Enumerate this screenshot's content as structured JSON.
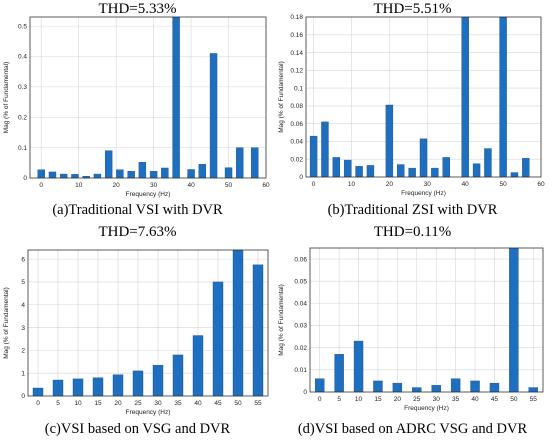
{
  "panels": [
    {
      "thd_label": "THD=5.33%",
      "caption": "(a)Traditional VSI with DVR",
      "chart_data": {
        "type": "bar",
        "x": [
          0,
          3,
          6,
          9,
          12,
          15,
          18,
          21,
          24,
          27,
          30,
          33,
          36,
          40,
          43,
          46,
          50,
          53,
          57
        ],
        "values": [
          0.027,
          0.02,
          0.013,
          0.012,
          0.006,
          0.013,
          0.09,
          0.027,
          0.022,
          0.052,
          0.022,
          0.033,
          0.53,
          0.028,
          0.045,
          0.41,
          0.034,
          0.1,
          0.1
        ],
        "xlim": [
          -3,
          60
        ],
        "ylim": [
          0,
          0.53
        ],
        "xticks": [
          0,
          10,
          20,
          30,
          40,
          50,
          60
        ],
        "yticks": [
          0,
          0.1,
          0.2,
          0.3,
          0.4,
          0.5
        ],
        "xtick_labels": [
          "0",
          "10",
          "20",
          "30",
          "40",
          "50",
          "60"
        ],
        "ytick_labels": [
          "0",
          "0.1",
          "0.2",
          "0.3",
          "0.4",
          "0.5"
        ],
        "xlabel": "Frequency (Hz)",
        "ylabel": "Mag (% of Fundamental)",
        "grid": true
      }
    },
    {
      "thd_label": "THD=5.51%",
      "caption": "(b)Traditional ZSI with DVR",
      "chart_data": {
        "type": "bar",
        "x": [
          0,
          3,
          6,
          9,
          12,
          15,
          20,
          23,
          26,
          29,
          32,
          35,
          40,
          43,
          46,
          50,
          53,
          56
        ],
        "values": [
          0.046,
          0.062,
          0.022,
          0.019,
          0.012,
          0.013,
          0.081,
          0.014,
          0.01,
          0.043,
          0.01,
          0.022,
          0.18,
          0.015,
          0.032,
          0.18,
          0.005,
          0.021
        ],
        "xlim": [
          -2,
          60
        ],
        "ylim": [
          0,
          0.18
        ],
        "xticks": [
          0,
          10,
          20,
          30,
          40,
          50,
          60
        ],
        "yticks": [
          0,
          0.02,
          0.04,
          0.06,
          0.08,
          0.1,
          0.12,
          0.14,
          0.16,
          0.18
        ],
        "xtick_labels": [
          "0",
          "10",
          "20",
          "30",
          "40",
          "50",
          "60"
        ],
        "ytick_labels": [
          "0",
          "0.02",
          "0.04",
          "0.06",
          "0.08",
          "0.1",
          "0.12",
          "0.14",
          "0.16",
          "0.18"
        ],
        "xlabel": "Frequency (Hz)",
        "ylabel": "Mag (% of Fundamental)",
        "grid": true
      }
    },
    {
      "thd_label": "THD=7.63%",
      "caption": "(c)VSI based on VSG and DVR",
      "chart_data": {
        "type": "bar",
        "x": [
          0,
          5,
          10,
          15,
          20,
          25,
          30,
          35,
          40,
          45,
          50,
          55
        ],
        "values": [
          0.35,
          0.7,
          0.75,
          0.8,
          0.93,
          1.1,
          1.35,
          1.8,
          2.65,
          5.0,
          6.4,
          5.75
        ],
        "xlim": [
          -2.5,
          57.5
        ],
        "ylim": [
          0,
          6.4
        ],
        "xticks": [
          0,
          5,
          10,
          15,
          20,
          25,
          30,
          35,
          40,
          45,
          50,
          55
        ],
        "yticks": [
          0,
          1,
          2,
          3,
          4,
          5,
          6
        ],
        "xtick_labels": [
          "0",
          "5",
          "10",
          "15",
          "20",
          "25",
          "30",
          "35",
          "40",
          "45",
          "50",
          "55"
        ],
        "ytick_labels": [
          "0",
          "1",
          "2",
          "3",
          "4",
          "5",
          "6"
        ],
        "xlabel": "Frequency (Hz)",
        "ylabel": "Mag (% of Fundamental)",
        "grid": true
      }
    },
    {
      "thd_label": "THD=0.11%",
      "caption": "(d)VSI based on ADRC VSG and DVR",
      "chart_data": {
        "type": "bar",
        "x": [
          0,
          5,
          10,
          15,
          20,
          25,
          30,
          35,
          40,
          45,
          50,
          55
        ],
        "values": [
          0.006,
          0.017,
          0.023,
          0.005,
          0.004,
          0.002,
          0.003,
          0.006,
          0.005,
          0.004,
          0.065,
          0.002
        ],
        "xlim": [
          -2.5,
          57.5
        ],
        "ylim": [
          0,
          0.065
        ],
        "xticks": [
          0,
          5,
          10,
          15,
          20,
          25,
          30,
          35,
          40,
          45,
          50,
          55
        ],
        "yticks": [
          0,
          0.01,
          0.02,
          0.03,
          0.04,
          0.05,
          0.06
        ],
        "xtick_labels": [
          "0",
          "5",
          "10",
          "15",
          "20",
          "25",
          "30",
          "35",
          "40",
          "45",
          "50",
          "55"
        ],
        "ytick_labels": [
          "0",
          "0.01",
          "0.02",
          "0.03",
          "0.04",
          "0.05",
          "0.06"
        ],
        "xlabel": "Frequency (Hz)",
        "ylabel": "Mag (% of Fundamental)",
        "grid": true
      }
    }
  ],
  "colors": {
    "bar": "#1f6fc0",
    "bar_edge": "#174f8a",
    "grid": "#d6d6d6",
    "axis": "#333333"
  }
}
